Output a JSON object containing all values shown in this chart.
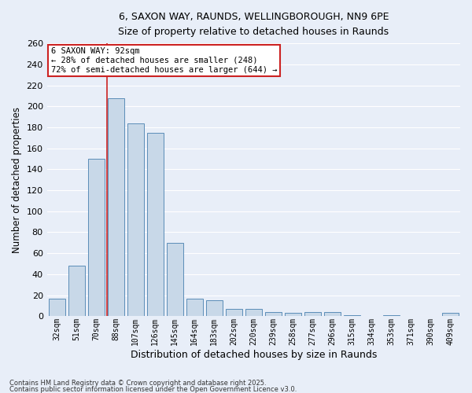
{
  "title_line1": "6, SAXON WAY, RAUNDS, WELLINGBOROUGH, NN9 6PE",
  "title_line2": "Size of property relative to detached houses in Raunds",
  "xlabel": "Distribution of detached houses by size in Raunds",
  "ylabel": "Number of detached properties",
  "categories": [
    "32sqm",
    "51sqm",
    "70sqm",
    "88sqm",
    "107sqm",
    "126sqm",
    "145sqm",
    "164sqm",
    "183sqm",
    "202sqm",
    "220sqm",
    "239sqm",
    "258sqm",
    "277sqm",
    "296sqm",
    "315sqm",
    "334sqm",
    "353sqm",
    "371sqm",
    "390sqm",
    "409sqm"
  ],
  "values": [
    17,
    48,
    150,
    208,
    184,
    175,
    70,
    17,
    15,
    7,
    7,
    4,
    3,
    4,
    4,
    1,
    0,
    1,
    0,
    0,
    3
  ],
  "bar_color": "#c8d8e8",
  "bar_edge_color": "#5b8db8",
  "vline_index": 3,
  "annotation_text": "6 SAXON WAY: 92sqm\n← 28% of detached houses are smaller (248)\n72% of semi-detached houses are larger (644) →",
  "annotation_box_facecolor": "#ffffff",
  "annotation_box_edgecolor": "#cc2222",
  "vline_color": "#cc2222",
  "ylim": [
    0,
    260
  ],
  "yticks": [
    0,
    20,
    40,
    60,
    80,
    100,
    120,
    140,
    160,
    180,
    200,
    220,
    240,
    260
  ],
  "background_color": "#e8eef8",
  "grid_color": "#ffffff",
  "footer_line1": "Contains HM Land Registry data © Crown copyright and database right 2025.",
  "footer_line2": "Contains public sector information licensed under the Open Government Licence v3.0."
}
